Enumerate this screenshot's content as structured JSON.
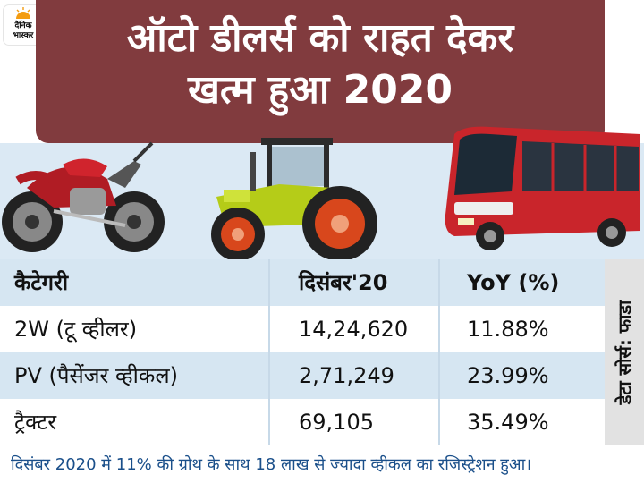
{
  "logo": {
    "line1": "दैनिक",
    "line2": "भास्कर"
  },
  "title": {
    "line1": "ऑटो डीलर्स को राहत देकर",
    "line2": "खत्म हुआ 2020"
  },
  "table": {
    "headers": [
      "कैटेगरी",
      "दिसंबर'20",
      "YoY (%)"
    ],
    "rows": [
      [
        "2W (टू व्हीलर)",
        "14,24,620",
        "11.88%"
      ],
      [
        "PV (पैसेंजर व्हीकल)",
        "2,71,249",
        "23.99%"
      ],
      [
        "ट्रैक्टर",
        "69,105",
        "35.49%"
      ]
    ]
  },
  "source": "डेटा सोर्स: फाडा",
  "footer": "दिसंबर 2020 में 11% की ग्रोथ के साथ 18 लाख से ज्यादा व्हीकल का रजिस्ट्रेशन हुआ।",
  "colors": {
    "banner": "#813b3e",
    "row_alt": "#d6e6f2",
    "footer_text": "#1a4f8a",
    "sky": "#dbe9f4"
  }
}
